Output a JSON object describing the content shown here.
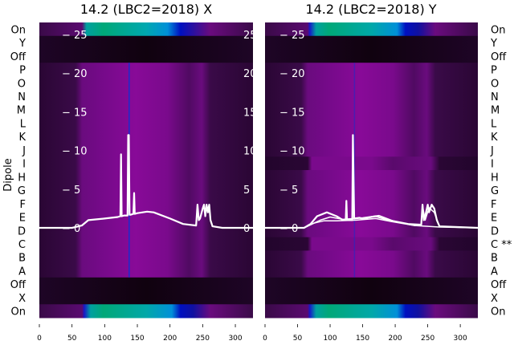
{
  "chart_data": [
    {
      "type": "heatmap",
      "title": "14.2 (LBC2=2018) X",
      "ylabel": "Dipole",
      "row_labels": [
        "On",
        "Y",
        "Off",
        "P",
        "O",
        "N",
        "M",
        "L",
        "K",
        "J",
        "I",
        "H",
        "G",
        "F",
        "E",
        "D",
        "C",
        "B",
        "A",
        "Off",
        "X",
        "On"
      ],
      "row_types": [
        "on-weak",
        "off",
        "off",
        "dip",
        "dip",
        "dip",
        "dip",
        "dip",
        "dip",
        "dip",
        "dip",
        "dip",
        "dip",
        "dip",
        "dip",
        "dip",
        "dip",
        "dip",
        "dip",
        "off",
        "off",
        "on"
      ],
      "x_ticks": [
        0,
        50,
        100,
        150,
        200,
        250,
        300
      ],
      "xlim": [
        0,
        327
      ],
      "inner_y_ticks": [
        0,
        5,
        10,
        15,
        20,
        25
      ],
      "inner_ylim": [
        -11.5,
        26.5
      ],
      "overlay_series": [
        {
          "name": "profile",
          "x": [
            0,
            50,
            65,
            75,
            100,
            120,
            124,
            125,
            126,
            130,
            135,
            136,
            137,
            138,
            140,
            144,
            145,
            146,
            150,
            165,
            175,
            200,
            220,
            240,
            242,
            244,
            246,
            250,
            252,
            254,
            256,
            258,
            260,
            262,
            265,
            280,
            327
          ],
          "y": [
            0,
            0,
            0.3,
            1,
            1.2,
            1.4,
            1.5,
            9.5,
            1.5,
            1.6,
            1.6,
            12,
            12,
            1.7,
            1.7,
            1.8,
            4.5,
            1.8,
            1.9,
            2.1,
            2,
            1.2,
            0.5,
            0.3,
            3,
            1,
            1.2,
            2.5,
            3,
            1.5,
            3,
            2,
            3,
            1,
            0.2,
            0,
            0
          ]
        }
      ]
    },
    {
      "type": "heatmap",
      "title": "14.2 (LBC2=2018) Y",
      "row_labels": [
        "On",
        "Y",
        "Off",
        "P",
        "O",
        "N",
        "M",
        "L",
        "K",
        "J",
        "I",
        "H",
        "G",
        "F",
        "E",
        "D",
        "C **",
        "B",
        "A",
        "Off",
        "X",
        "On"
      ],
      "row_types": [
        "on",
        "off",
        "off",
        "dip",
        "dip",
        "dip",
        "dip",
        "dip",
        "dip",
        "dip",
        "dip-hi",
        "dip",
        "dip",
        "dip",
        "dip",
        "dip",
        "dip-hi",
        "dip",
        "dip",
        "off",
        "off",
        "on"
      ],
      "x_ticks": [
        0,
        50,
        100,
        150,
        200,
        250,
        300
      ],
      "xlim": [
        0,
        327
      ],
      "inner_y_ticks": [
        0,
        5,
        10,
        15,
        20,
        25
      ],
      "inner_ylim": [
        -11.5,
        26.5
      ],
      "overlay_series": [
        {
          "name": "profile-1",
          "x": [
            0,
            60,
            70,
            80,
            95,
            110,
            120,
            124,
            125,
            126,
            132,
            134,
            135,
            137,
            145,
            150,
            170,
            190,
            220,
            240,
            242,
            244,
            246,
            250,
            252,
            256,
            260,
            264,
            268,
            327
          ],
          "y": [
            0,
            0,
            0.5,
            1.5,
            2,
            1.5,
            1,
            1,
            3.5,
            1,
            1,
            1,
            12,
            1.2,
            1.3,
            1.2,
            1.5,
            1,
            0.5,
            0.4,
            3,
            1,
            1.5,
            3,
            2,
            3,
            2.5,
            1,
            0.2,
            0
          ]
        },
        {
          "name": "profile-2",
          "x": [
            0,
            60,
            70,
            85,
            100,
            120,
            150,
            175,
            200,
            230,
            240,
            242,
            246,
            252,
            260,
            268,
            327
          ],
          "y": [
            0,
            0,
            0.4,
            1,
            1.4,
            1.1,
            1.3,
            1.6,
            0.8,
            0.3,
            0.3,
            2.8,
            1,
            2.6,
            2,
            0.2,
            0
          ]
        },
        {
          "name": "profile-3",
          "x": [
            0,
            60,
            75,
            90,
            110,
            140,
            170,
            195,
            230,
            268,
            327
          ],
          "y": [
            0,
            0,
            0.6,
            0.9,
            0.9,
            1,
            1.2,
            0.8,
            0.3,
            0.1,
            0
          ]
        }
      ]
    }
  ]
}
